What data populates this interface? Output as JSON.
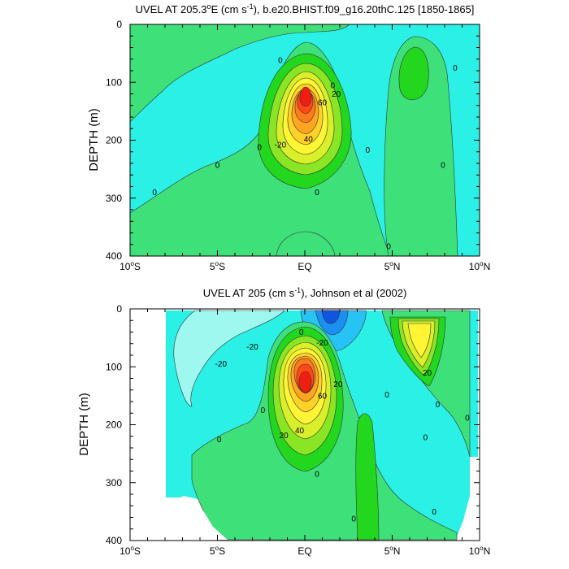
{
  "chart_data": [
    {
      "type": "contour",
      "title_prefix": "UVEL AT 205.3",
      "title_sup": "o",
      "title_mid": "E (cm s",
      "title_sup2": "-1",
      "title_suffix": "), b.e20.BHIST.f09_g16.20thC.125 [1850-1865]",
      "ylabel": "DEPTH (m)",
      "x_ticks": [
        {
          "value": -10,
          "num": "10",
          "sup": "o",
          "hemi": "S"
        },
        {
          "value": -5,
          "num": "5",
          "sup": "o",
          "hemi": "S"
        },
        {
          "value": 0,
          "num": "EQ",
          "sup": "",
          "hemi": ""
        },
        {
          "value": 5,
          "num": "5",
          "sup": "o",
          "hemi": "N"
        },
        {
          "value": 10,
          "num": "10",
          "sup": "o",
          "hemi": "N"
        }
      ],
      "y_ticks": [
        0,
        100,
        200,
        300,
        400
      ],
      "xlim": [
        -10,
        10
      ],
      "ylim": [
        0,
        400
      ],
      "y_inverted": true,
      "contour_labels": [
        {
          "text": "0",
          "lat": -1.4,
          "depth": 62
        },
        {
          "text": "0",
          "lat": 1.6,
          "depth": 105
        },
        {
          "text": "0",
          "lat": 8.6,
          "depth": 75
        },
        {
          "text": "0",
          "lat": -2.6,
          "depth": 212
        },
        {
          "text": "0",
          "lat": 3.6,
          "depth": 217
        },
        {
          "text": "0",
          "lat": -5.0,
          "depth": 243
        },
        {
          "text": "0",
          "lat": 7.9,
          "depth": 243
        },
        {
          "text": "0",
          "lat": -8.6,
          "depth": 290
        },
        {
          "text": "0",
          "lat": 0.7,
          "depth": 290
        },
        {
          "text": "0",
          "lat": 4.8,
          "depth": 383
        },
        {
          "text": "20",
          "lat": 1.8,
          "depth": 120
        },
        {
          "text": "60",
          "lat": 1.0,
          "depth": 135
        },
        {
          "text": "40",
          "lat": 0.2,
          "depth": 198
        },
        {
          "text": "-20",
          "lat": -1.4,
          "depth": 208
        }
      ]
    },
    {
      "type": "contour",
      "title_prefix": "UVEL AT 205 (cm s",
      "title_sup": "-1",
      "title_suffix": "), Johnson et al (2002)",
      "ylabel": "DEPTH (m)",
      "x_ticks": [
        {
          "value": -10,
          "num": "10",
          "sup": "o",
          "hemi": "S"
        },
        {
          "value": -5,
          "num": "5",
          "sup": "o",
          "hemi": "S"
        },
        {
          "value": 0,
          "num": "EQ",
          "sup": "",
          "hemi": ""
        },
        {
          "value": 5,
          "num": "5",
          "sup": "o",
          "hemi": "N"
        },
        {
          "value": 10,
          "num": "10",
          "sup": "o",
          "hemi": "N"
        }
      ],
      "y_ticks": [
        0,
        100,
        200,
        300,
        400
      ],
      "xlim": [
        -10,
        10
      ],
      "ylim": [
        0,
        400
      ],
      "y_inverted": true,
      "contour_labels": [
        {
          "text": "-20",
          "lat": -4.8,
          "depth": 95
        },
        {
          "text": "-20",
          "lat": -3.0,
          "depth": 65
        },
        {
          "text": "0",
          "lat": -0.2,
          "depth": 40
        },
        {
          "text": "-20",
          "lat": 1.0,
          "depth": 58
        },
        {
          "text": "20",
          "lat": 7.0,
          "depth": 110
        },
        {
          "text": "20",
          "lat": 1.9,
          "depth": 130
        },
        {
          "text": "60",
          "lat": 1.0,
          "depth": 150
        },
        {
          "text": "0",
          "lat": 4.7,
          "depth": 148
        },
        {
          "text": "0",
          "lat": -2.4,
          "depth": 175
        },
        {
          "text": "0",
          "lat": 7.6,
          "depth": 165
        },
        {
          "text": "0",
          "lat": 9.3,
          "depth": 188
        },
        {
          "text": "40",
          "lat": -0.3,
          "depth": 210
        },
        {
          "text": "20",
          "lat": -1.2,
          "depth": 218
        },
        {
          "text": "0",
          "lat": -4.9,
          "depth": 225
        },
        {
          "text": "0",
          "lat": 6.9,
          "depth": 222
        },
        {
          "text": "0",
          "lat": 0.7,
          "depth": 285
        },
        {
          "text": "0",
          "lat": 2.8,
          "depth": 362
        },
        {
          "text": "0",
          "lat": 7.4,
          "depth": 350
        }
      ]
    }
  ]
}
